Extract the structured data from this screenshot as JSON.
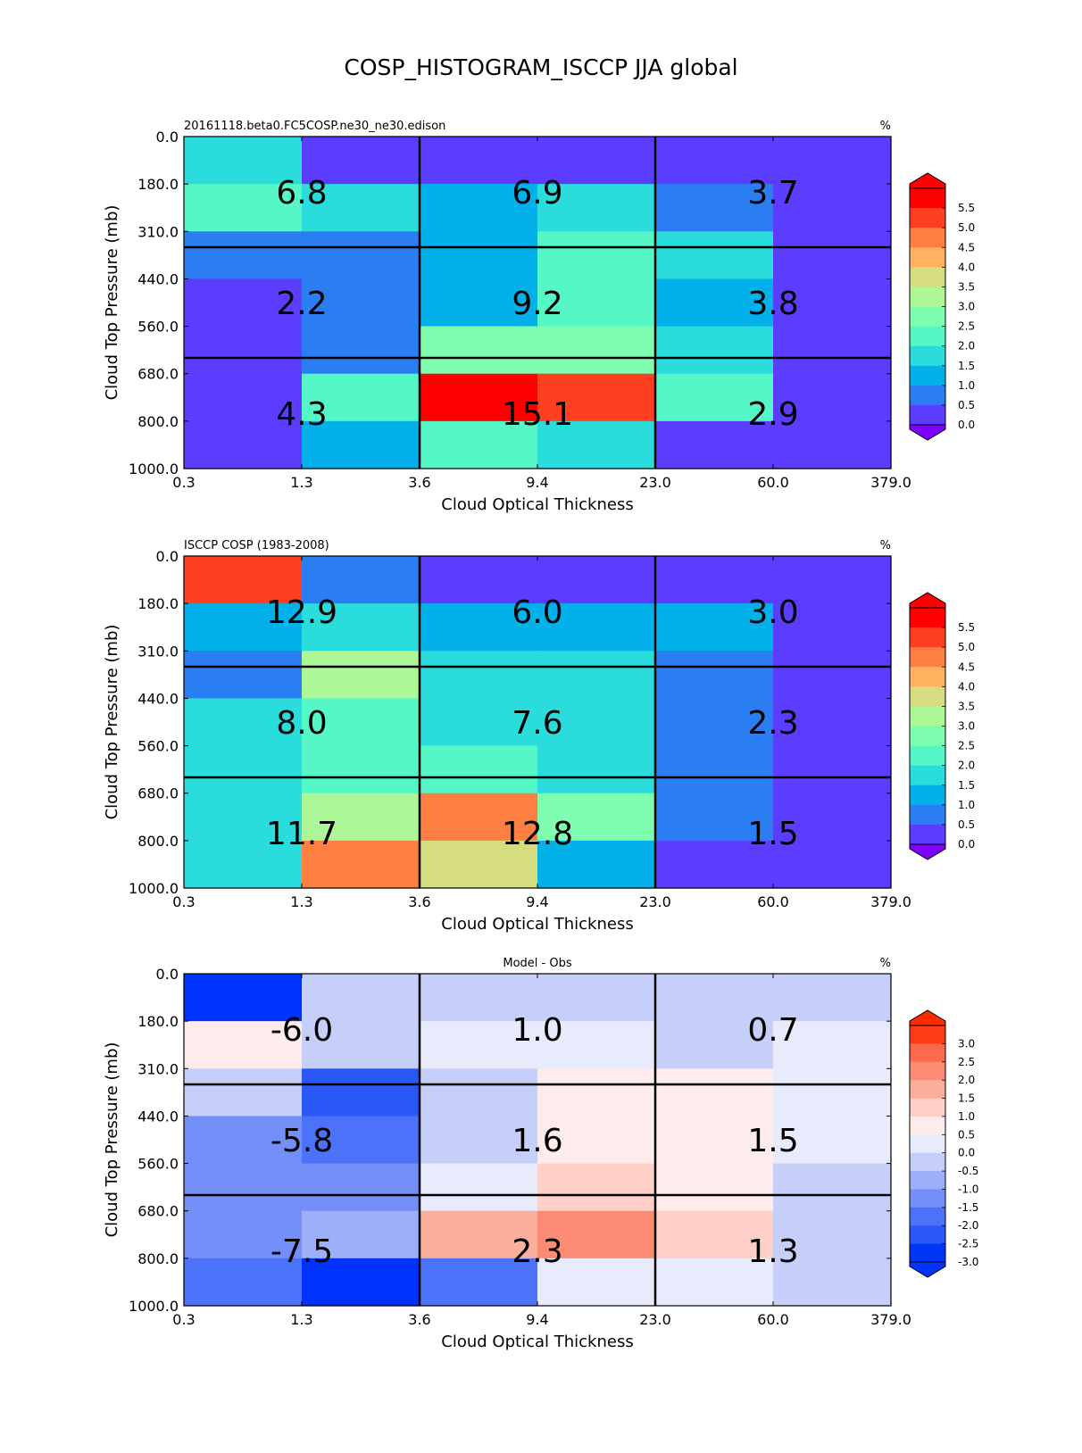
{
  "figure": {
    "title": "COSP_HISTOGRAM_ISCCP JJA global"
  },
  "chart_data": [
    {
      "type": "heatmap",
      "title": "20161118.beta0.FC5COSP.ne30_ne30.edison",
      "units": "%",
      "xlabel": "Cloud Optical Thickness",
      "ylabel": "Cloud Top Pressure (mb)",
      "xticks": [
        "0.3",
        "1.3",
        "3.6",
        "9.4",
        "23.0",
        "60.0",
        "379.0"
      ],
      "yticks": [
        "0.0",
        "180.0",
        "310.0",
        "440.0",
        "560.0",
        "680.0",
        "800.0",
        "1000.0"
      ],
      "colorbar": {
        "ticks": [
          "5.5",
          "5.0",
          "4.5",
          "4.0",
          "3.5",
          "3.0",
          "2.5",
          "2.0",
          "1.5",
          "1.0",
          "0.5",
          "0.0"
        ],
        "levels": [
          0.0,
          0.5,
          1.0,
          1.5,
          2.0,
          2.5,
          3.0,
          3.5,
          4.0,
          4.5,
          5.0,
          5.5
        ],
        "colors": [
          "#5a3dff",
          "#2a7ef2",
          "#02b1ea",
          "#2adcdc",
          "#55f7c7",
          "#80feaf",
          "#adf797",
          "#d5dd80",
          "#ffb15f",
          "#ff7e41",
          "#ff4020",
          "#ff0000"
        ],
        "under_color": "#8000ff",
        "over_color": "#ff0000",
        "extend": "both"
      },
      "values": [
        [
          1.5,
          0.2,
          0.2,
          0.2,
          0.2,
          0.2
        ],
        [
          2.2,
          1.8,
          1.2,
          1.8,
          0.8,
          0.2
        ],
        [
          0.8,
          0.8,
          1.2,
          2.2,
          1.8,
          0.2
        ],
        [
          0.2,
          0.8,
          1.2,
          2.2,
          1.2,
          0.2
        ],
        [
          0.2,
          0.8,
          2.8,
          2.8,
          1.8,
          0.2
        ],
        [
          0.2,
          2.2,
          5.8,
          5.2,
          2.2,
          0.2
        ],
        [
          0.2,
          1.2,
          2.2,
          1.8,
          0.2,
          0.2
        ]
      ],
      "block_values": [
        [
          "6.8",
          "6.9",
          "3.7"
        ],
        [
          "2.2",
          "9.2",
          "3.8"
        ],
        [
          "4.3",
          "15.1",
          "2.9"
        ]
      ]
    },
    {
      "type": "heatmap",
      "title": "ISCCP COSP (1983-2008)",
      "units": "%",
      "xlabel": "Cloud Optical Thickness",
      "ylabel": "Cloud Top Pressure (mb)",
      "xticks": [
        "0.3",
        "1.3",
        "3.6",
        "9.4",
        "23.0",
        "60.0",
        "379.0"
      ],
      "yticks": [
        "0.0",
        "180.0",
        "310.0",
        "440.0",
        "560.0",
        "680.0",
        "800.0",
        "1000.0"
      ],
      "colorbar": {
        "ticks": [
          "5.5",
          "5.0",
          "4.5",
          "4.0",
          "3.5",
          "3.0",
          "2.5",
          "2.0",
          "1.5",
          "1.0",
          "0.5",
          "0.0"
        ],
        "levels": [
          0.0,
          0.5,
          1.0,
          1.5,
          2.0,
          2.5,
          3.0,
          3.5,
          4.0,
          4.5,
          5.0,
          5.5
        ],
        "colors": [
          "#5a3dff",
          "#2a7ef2",
          "#02b1ea",
          "#2adcdc",
          "#55f7c7",
          "#80feaf",
          "#adf797",
          "#d5dd80",
          "#ffb15f",
          "#ff7e41",
          "#ff4020",
          "#ff0000"
        ],
        "under_color": "#8000ff",
        "over_color": "#ff0000",
        "extend": "both"
      },
      "values": [
        [
          5.2,
          0.8,
          0.2,
          0.2,
          0.2,
          0.2
        ],
        [
          1.2,
          1.8,
          1.2,
          1.2,
          1.2,
          0.2
        ],
        [
          0.8,
          3.2,
          1.8,
          1.8,
          0.8,
          0.2
        ],
        [
          1.8,
          2.2,
          1.8,
          1.8,
          0.8,
          0.2
        ],
        [
          1.8,
          2.2,
          2.2,
          1.8,
          0.8,
          0.2
        ],
        [
          1.8,
          3.2,
          4.8,
          2.8,
          0.8,
          0.2
        ],
        [
          1.8,
          4.8,
          3.8,
          1.2,
          0.2,
          0.2
        ]
      ],
      "block_values": [
        [
          "12.9",
          "6.0",
          "3.0"
        ],
        [
          "8.0",
          "7.6",
          "2.3"
        ],
        [
          "11.7",
          "12.8",
          "1.5"
        ]
      ]
    },
    {
      "type": "heatmap",
      "title": "Model - Obs",
      "units": "%",
      "xlabel": "Cloud Optical Thickness",
      "ylabel": "Cloud Top Pressure (mb)",
      "xticks": [
        "0.3",
        "1.3",
        "3.6",
        "9.4",
        "23.0",
        "60.0",
        "379.0"
      ],
      "yticks": [
        "0.0",
        "180.0",
        "310.0",
        "440.0",
        "560.0",
        "680.0",
        "800.0",
        "1000.0"
      ],
      "colorbar": {
        "ticks": [
          "3.0",
          "2.5",
          "2.0",
          "1.5",
          "1.0",
          "0.5",
          "0.0",
          "-0.5",
          "-1.0",
          "-1.5",
          "-2.0",
          "-2.5",
          "-3.0"
        ],
        "levels": [
          -3.0,
          -2.5,
          -2.0,
          -1.5,
          -1.0,
          -0.5,
          0.0,
          0.5,
          1.0,
          1.5,
          2.0,
          2.5,
          3.0
        ],
        "colors": [
          "#0036f6",
          "#2a58f6",
          "#4b72f8",
          "#758ff9",
          "#9eaff9",
          "#c6cffa",
          "#e8ebfc",
          "#fdeceb",
          "#fdcfc6",
          "#fcae9c",
          "#fb8c73",
          "#fb6a4c",
          "#fb3c15"
        ],
        "under_color": "#0033ff",
        "over_color": "#ff2a00",
        "extend": "both"
      },
      "values": [
        [
          -3.2,
          -0.2,
          -0.2,
          -0.2,
          -0.2,
          -0.2
        ],
        [
          0.7,
          -0.2,
          0.2,
          0.2,
          -0.2,
          0.2
        ],
        [
          -0.2,
          -2.2,
          -0.2,
          0.7,
          0.7,
          0.2
        ],
        [
          -1.2,
          -1.7,
          -0.2,
          0.7,
          0.7,
          0.2
        ],
        [
          -1.2,
          -1.2,
          0.2,
          1.2,
          0.7,
          -0.2
        ],
        [
          -1.2,
          -0.7,
          1.7,
          2.2,
          1.2,
          -0.2
        ],
        [
          -1.7,
          -3.2,
          -1.7,
          0.2,
          0.2,
          -0.2
        ]
      ],
      "block_values": [
        [
          "-6.0",
          "1.0",
          "0.7"
        ],
        [
          "-5.8",
          "1.6",
          "1.5"
        ],
        [
          "-7.5",
          "2.3",
          "1.3"
        ]
      ]
    }
  ]
}
